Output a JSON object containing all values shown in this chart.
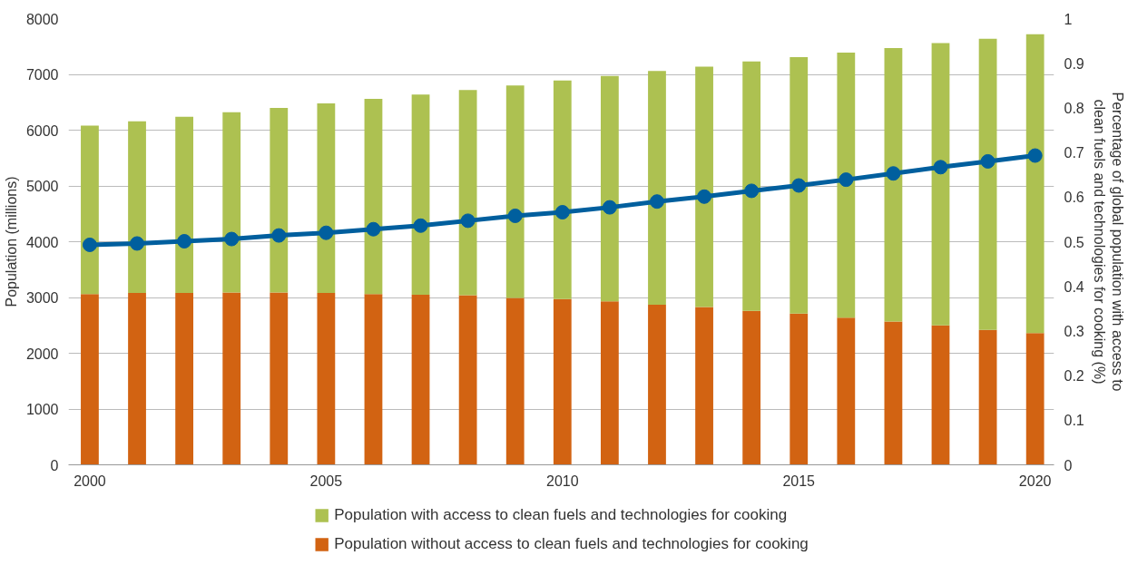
{
  "chart_data": {
    "type": "bar",
    "stacked": true,
    "x": [
      2000,
      2001,
      2002,
      2003,
      2004,
      2005,
      2006,
      2007,
      2008,
      2009,
      2010,
      2011,
      2012,
      2013,
      2014,
      2015,
      2016,
      2017,
      2018,
      2019,
      2020
    ],
    "xlim": [
      1999.55,
      2020.4
    ],
    "xticks": [
      2000,
      2005,
      2010,
      2015,
      2020
    ],
    "ylim": [
      0,
      8000
    ],
    "yticks": [
      0,
      1000,
      2000,
      3000,
      4000,
      5000,
      6000,
      7000,
      8000
    ],
    "y2lim": [
      0,
      1
    ],
    "y2ticks": [
      0,
      0.1,
      0.2,
      0.3,
      0.4,
      0.5,
      0.6,
      0.7,
      0.8,
      0.9,
      1
    ],
    "ylabel": "Population (millions)",
    "y2label": "Percentage of global population with access to clean fuels and technologies for cooking (%)",
    "grid": "y",
    "legend": "bottom",
    "series": [
      {
        "name": "Population without access to clean fuels and technologies for cooking",
        "color": "#d26312",
        "values": [
          3060,
          3080,
          3080,
          3090,
          3090,
          3080,
          3060,
          3050,
          3040,
          2990,
          2970,
          2930,
          2870,
          2830,
          2760,
          2710,
          2640,
          2570,
          2500,
          2420,
          2360
        ]
      },
      {
        "name": "Population with access to clean fuels and technologies for cooking",
        "color": "#adc151",
        "values": [
          3020,
          3080,
          3160,
          3230,
          3310,
          3400,
          3500,
          3590,
          3680,
          3810,
          3920,
          4040,
          4190,
          4310,
          4470,
          4600,
          4750,
          4900,
          5060,
          5220,
          5360
        ]
      },
      {
        "type": "line",
        "axis": "y2",
        "color": "#005f9e",
        "marker": "circle",
        "line_style": "solid",
        "values": [
          0.493,
          0.496,
          0.501,
          0.506,
          0.514,
          0.52,
          0.528,
          0.536,
          0.547,
          0.558,
          0.566,
          0.577,
          0.59,
          0.601,
          0.614,
          0.626,
          0.639,
          0.653,
          0.667,
          0.68,
          0.693
        ]
      }
    ]
  }
}
